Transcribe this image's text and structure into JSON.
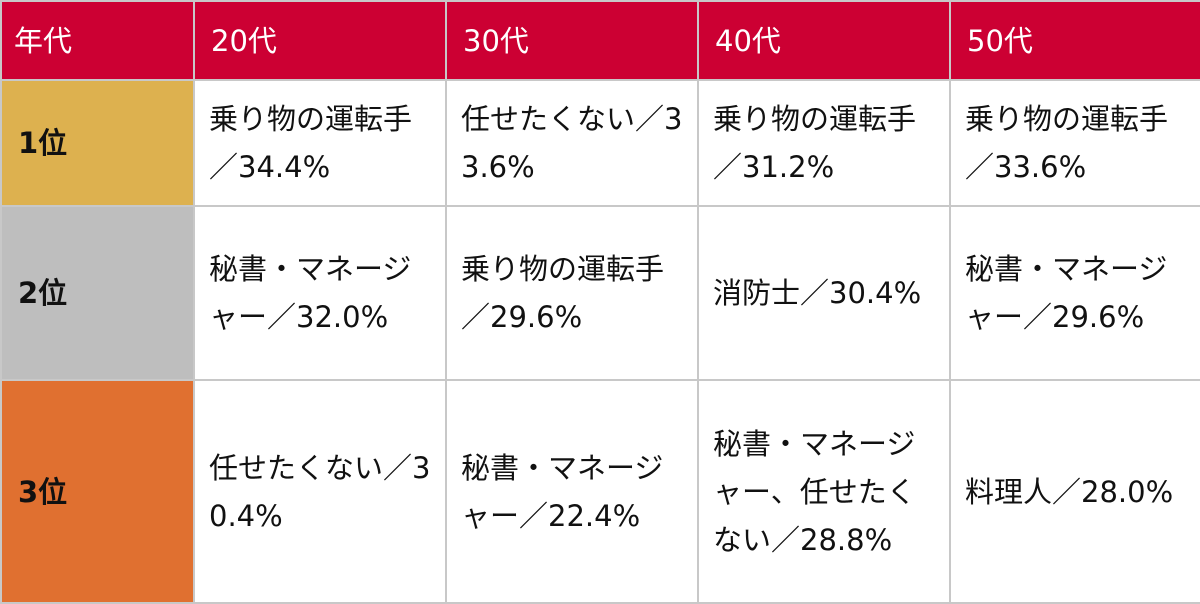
{
  "table": {
    "header": {
      "generation_label": "年代",
      "columns": [
        "20代",
        "30代",
        "40代",
        "50代"
      ],
      "color": "#cc0033"
    },
    "rows": [
      {
        "rank": "1位",
        "color": "#ddb14f",
        "cells": [
          "乗り物の運転手／34.4%",
          "任せたくない／33.6%",
          "乗り物の運転手／31.2%",
          "乗り物の運転手／33.6%"
        ]
      },
      {
        "rank": "2位",
        "color": "#bebebe",
        "cells": [
          "秘書・マネージャー／32.0%",
          "乗り物の運転手／29.6%",
          "消防士／30.4%",
          "秘書・マネージャー／29.6%"
        ]
      },
      {
        "rank": "3位",
        "color": "#e07030",
        "cells": [
          "任せたくない／30.4%",
          "秘書・マネージャー／22.4%",
          "秘書・マネージャー、任せたくない／28.8%",
          "料理人／28.0%"
        ]
      }
    ]
  }
}
